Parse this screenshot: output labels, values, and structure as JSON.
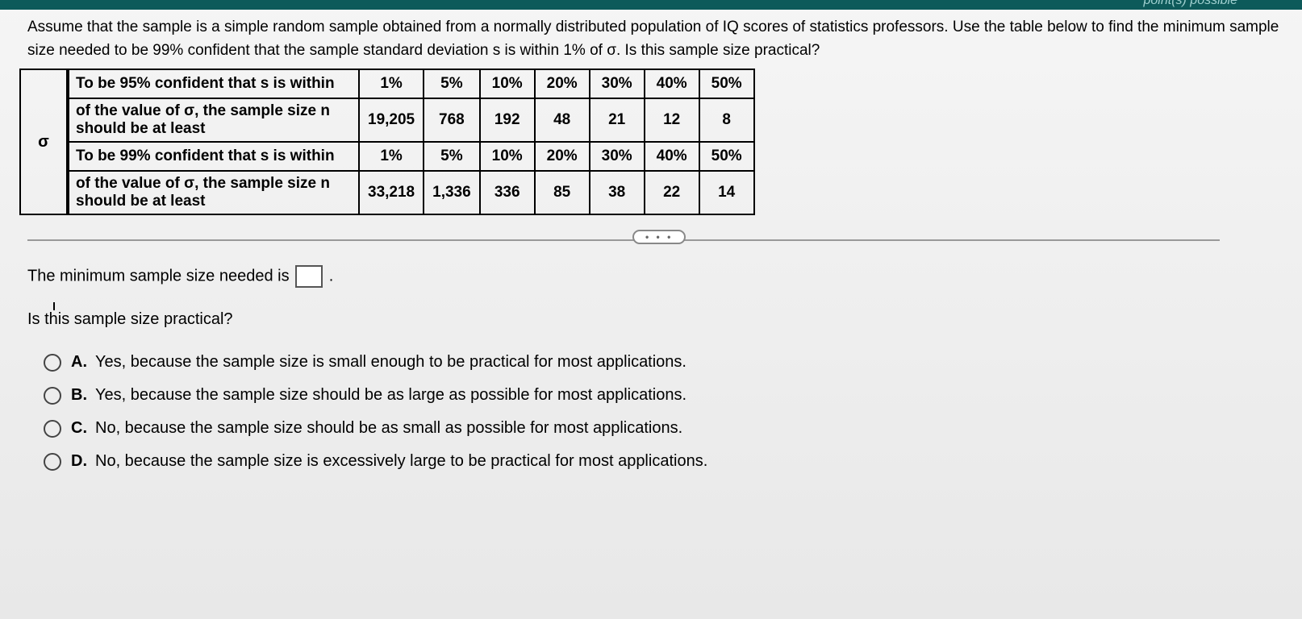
{
  "header": {
    "right_text": "point(s) possible"
  },
  "question": {
    "text": "Assume that the sample is a simple random sample obtained from a normally distributed population of IQ scores of statistics professors. Use the table below to find the minimum sample size needed to be 99% confident that the sample standard deviation s is within 1% of σ. Is this sample size practical?"
  },
  "sigma_label": "σ",
  "table": {
    "rows": [
      {
        "label": "To be 95% confident that s is within",
        "cells": [
          "1%",
          "5%",
          "10%",
          "20%",
          "30%",
          "40%",
          "50%"
        ]
      },
      {
        "label": "of the value of σ, the sample size n should be at least",
        "cells": [
          "19,205",
          "768",
          "192",
          "48",
          "21",
          "12",
          "8"
        ]
      },
      {
        "label": "To be 99% confident that s is within",
        "cells": [
          "1%",
          "5%",
          "10%",
          "20%",
          "30%",
          "40%",
          "50%"
        ]
      },
      {
        "label": "of the value of σ, the sample size n should be at least",
        "cells": [
          "33,218",
          "1,336",
          "336",
          "85",
          "38",
          "22",
          "14"
        ]
      }
    ]
  },
  "prompt": {
    "prefix": "The minimum sample size needed is ",
    "suffix": "."
  },
  "sub_question": "Is this sample size practical?",
  "ellipsis": "• • •",
  "options": [
    {
      "letter": "A.",
      "text": "Yes, because the sample size is small enough to be practical for most applications."
    },
    {
      "letter": "B.",
      "text": "Yes, because the sample size should be as large as possible for most applications."
    },
    {
      "letter": "C.",
      "text": "No, because the sample size should be as small as possible for most applications."
    },
    {
      "letter": "D.",
      "text": "No, because the sample size is excessively large to be practical for most applications."
    }
  ]
}
